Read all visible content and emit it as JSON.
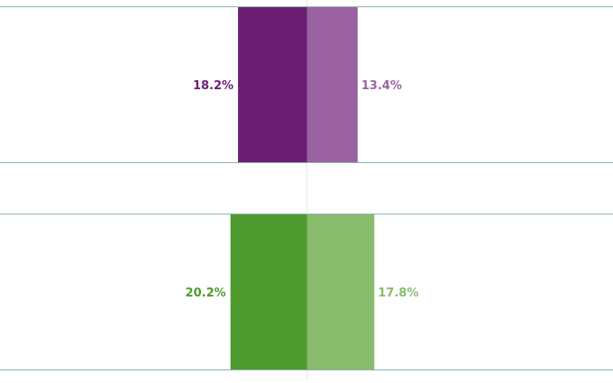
{
  "chart_data": {
    "type": "bar",
    "orientation": "diverging-horizontal",
    "title": "",
    "xlabel": "",
    "ylabel": "",
    "xlim": [
      -28,
      28
    ],
    "grid": false,
    "legend": "none",
    "rows": [
      {
        "left": {
          "value": 18.2,
          "label": "18.2%",
          "color": "#6a1f73"
        },
        "right": {
          "value": 13.4,
          "label": "13.4%",
          "color": "#9a62a0"
        }
      },
      {
        "left": {
          "value": 20.2,
          "label": "20.2%",
          "color": "#4f9a2f"
        },
        "right": {
          "value": 17.8,
          "label": "17.8%",
          "color": "#88bb6c"
        }
      }
    ]
  }
}
